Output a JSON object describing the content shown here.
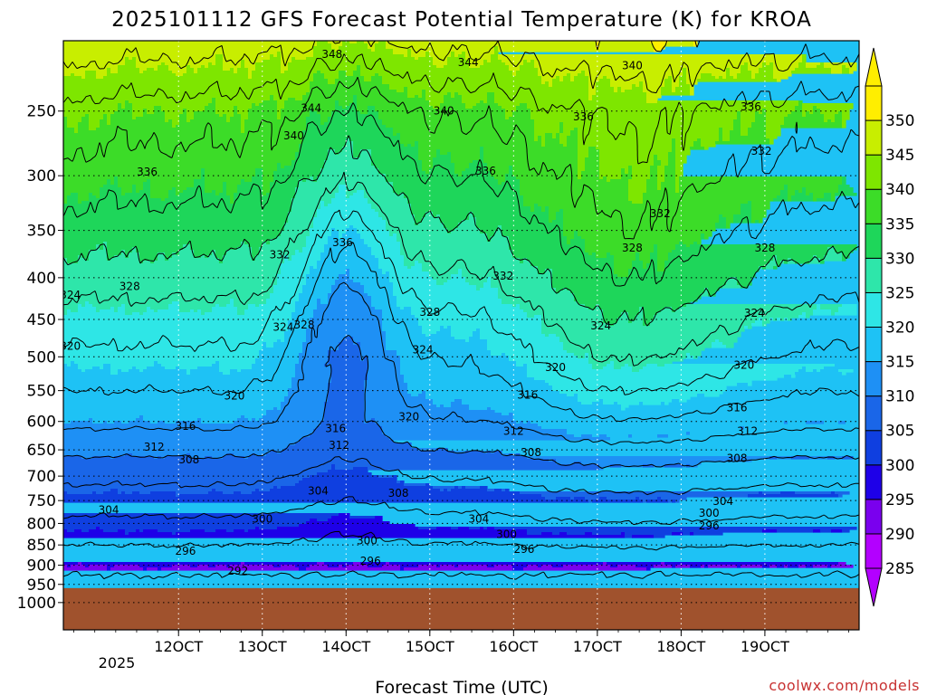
{
  "chart_data": {
    "type": "heatmap",
    "title": "2025101112 GFS Forecast Potential Temperature (K) for KROA",
    "xlabel": "Forecast Time (UTC)",
    "ylabel": "",
    "credit": "coolwx.com/models",
    "x_axis": {
      "unit": "hours since 12Z 11 Oct 2025",
      "range": [
        -33,
        195
      ],
      "ticks": [
        {
          "label": "12OCT",
          "hours": 0
        },
        {
          "label": "13OCT",
          "hours": 24
        },
        {
          "label": "14OCT",
          "hours": 48
        },
        {
          "label": "15OCT",
          "hours": 72
        },
        {
          "label": "16OCT",
          "hours": 96
        },
        {
          "label": "17OCT",
          "hours": 120
        },
        {
          "label": "18OCT",
          "hours": 144
        },
        {
          "label": "19OCT",
          "hours": 168
        }
      ],
      "year_label": "2025"
    },
    "y_axis": {
      "unit": "hPa",
      "scale": "log",
      "range": [
        1080,
        205
      ],
      "ticks": [
        250,
        300,
        350,
        400,
        450,
        500,
        550,
        600,
        650,
        700,
        750,
        800,
        850,
        900,
        950,
        1000
      ]
    },
    "colorbar": {
      "levels": [
        285,
        290,
        295,
        300,
        305,
        310,
        315,
        320,
        325,
        330,
        335,
        340,
        345,
        350
      ],
      "colors": [
        "#b300ff",
        "#7a00ee",
        "#1e00e8",
        "#0f3fe0",
        "#1a66e8",
        "#1e90f5",
        "#1ec2f5",
        "#2ee6e6",
        "#2ee6aa",
        "#1ed65a",
        "#3cdc28",
        "#7ee600",
        "#c8ee00",
        "#ffee00"
      ]
    },
    "ground": {
      "color": "#a0522d",
      "pressure_top": 960
    },
    "theta_profile": {
      "pressure": [
        1000,
        950,
        900,
        850,
        800,
        750,
        700,
        650,
        600,
        550,
        500,
        450,
        400,
        350,
        300,
        250,
        205
      ],
      "theta_typical": [
        291,
        293,
        295,
        298,
        301,
        304,
        307,
        311,
        315,
        318,
        321,
        324,
        328,
        332,
        336,
        340,
        348
      ],
      "trough_time_hours": 48,
      "trough_descent": [
        0,
        0,
        0,
        1,
        2,
        2,
        3,
        4,
        6,
        9,
        12,
        13,
        13,
        12,
        9,
        6,
        3
      ]
    },
    "contour_interval": 4,
    "contour_labels": [
      {
        "value": "348",
        "hours": 44,
        "p": 213
      },
      {
        "value": "344",
        "hours": 83,
        "p": 218
      },
      {
        "value": "340",
        "hours": 130,
        "p": 220
      },
      {
        "value": "344",
        "hours": 38,
        "p": 248
      },
      {
        "value": "340",
        "hours": 76,
        "p": 250
      },
      {
        "value": "336",
        "hours": 116,
        "p": 254
      },
      {
        "value": "336",
        "hours": 164,
        "p": 247
      },
      {
        "value": "340",
        "hours": 33,
        "p": 268
      },
      {
        "value": "336",
        "hours": -9,
        "p": 297
      },
      {
        "value": "336",
        "hours": 88,
        "p": 296
      },
      {
        "value": "332",
        "hours": 167,
        "p": 280
      },
      {
        "value": "332",
        "hours": 138,
        "p": 334
      },
      {
        "value": "336",
        "hours": 47,
        "p": 362
      },
      {
        "value": "332",
        "hours": 29,
        "p": 375
      },
      {
        "value": "332",
        "hours": 93,
        "p": 398
      },
      {
        "value": "328",
        "hours": 130,
        "p": 368
      },
      {
        "value": "328",
        "hours": 168,
        "p": 368
      },
      {
        "value": "328",
        "hours": -14,
        "p": 410
      },
      {
        "value": "324",
        "hours": -31,
        "p": 420
      },
      {
        "value": "328",
        "hours": 72,
        "p": 441
      },
      {
        "value": "324",
        "hours": 30,
        "p": 460
      },
      {
        "value": "328",
        "hours": 36,
        "p": 457
      },
      {
        "value": "324",
        "hours": 121,
        "p": 458
      },
      {
        "value": "324",
        "hours": 165,
        "p": 442
      },
      {
        "value": "320",
        "hours": -31,
        "p": 485
      },
      {
        "value": "324",
        "hours": 70,
        "p": 490
      },
      {
        "value": "320",
        "hours": 108,
        "p": 515
      },
      {
        "value": "320",
        "hours": 162,
        "p": 512
      },
      {
        "value": "320",
        "hours": 16,
        "p": 558
      },
      {
        "value": "316",
        "hours": 100,
        "p": 557
      },
      {
        "value": "316",
        "hours": 160,
        "p": 577
      },
      {
        "value": "320",
        "hours": 66,
        "p": 592
      },
      {
        "value": "316",
        "hours": 45,
        "p": 612
      },
      {
        "value": "312",
        "hours": 96,
        "p": 617
      },
      {
        "value": "312",
        "hours": 163,
        "p": 617
      },
      {
        "value": "316",
        "hours": 2,
        "p": 608
      },
      {
        "value": "312",
        "hours": 46,
        "p": 642
      },
      {
        "value": "312",
        "hours": -7,
        "p": 645
      },
      {
        "value": "308",
        "hours": 3,
        "p": 668
      },
      {
        "value": "308",
        "hours": 101,
        "p": 655
      },
      {
        "value": "308",
        "hours": 160,
        "p": 666
      },
      {
        "value": "304",
        "hours": 40,
        "p": 730
      },
      {
        "value": "308",
        "hours": 63,
        "p": 735
      },
      {
        "value": "304",
        "hours": -20,
        "p": 770
      },
      {
        "value": "304",
        "hours": 156,
        "p": 752
      },
      {
        "value": "304",
        "hours": 86,
        "p": 790
      },
      {
        "value": "300",
        "hours": 24,
        "p": 790
      },
      {
        "value": "300",
        "hours": 152,
        "p": 777
      },
      {
        "value": "296",
        "hours": 152,
        "p": 805
      },
      {
        "value": "300",
        "hours": 94,
        "p": 825
      },
      {
        "value": "300",
        "hours": 54,
        "p": 840
      },
      {
        "value": "296",
        "hours": 2,
        "p": 865
      },
      {
        "value": "296",
        "hours": 99,
        "p": 860
      },
      {
        "value": "296",
        "hours": 55,
        "p": 890
      },
      {
        "value": "292",
        "hours": 17,
        "p": 915
      }
    ]
  }
}
